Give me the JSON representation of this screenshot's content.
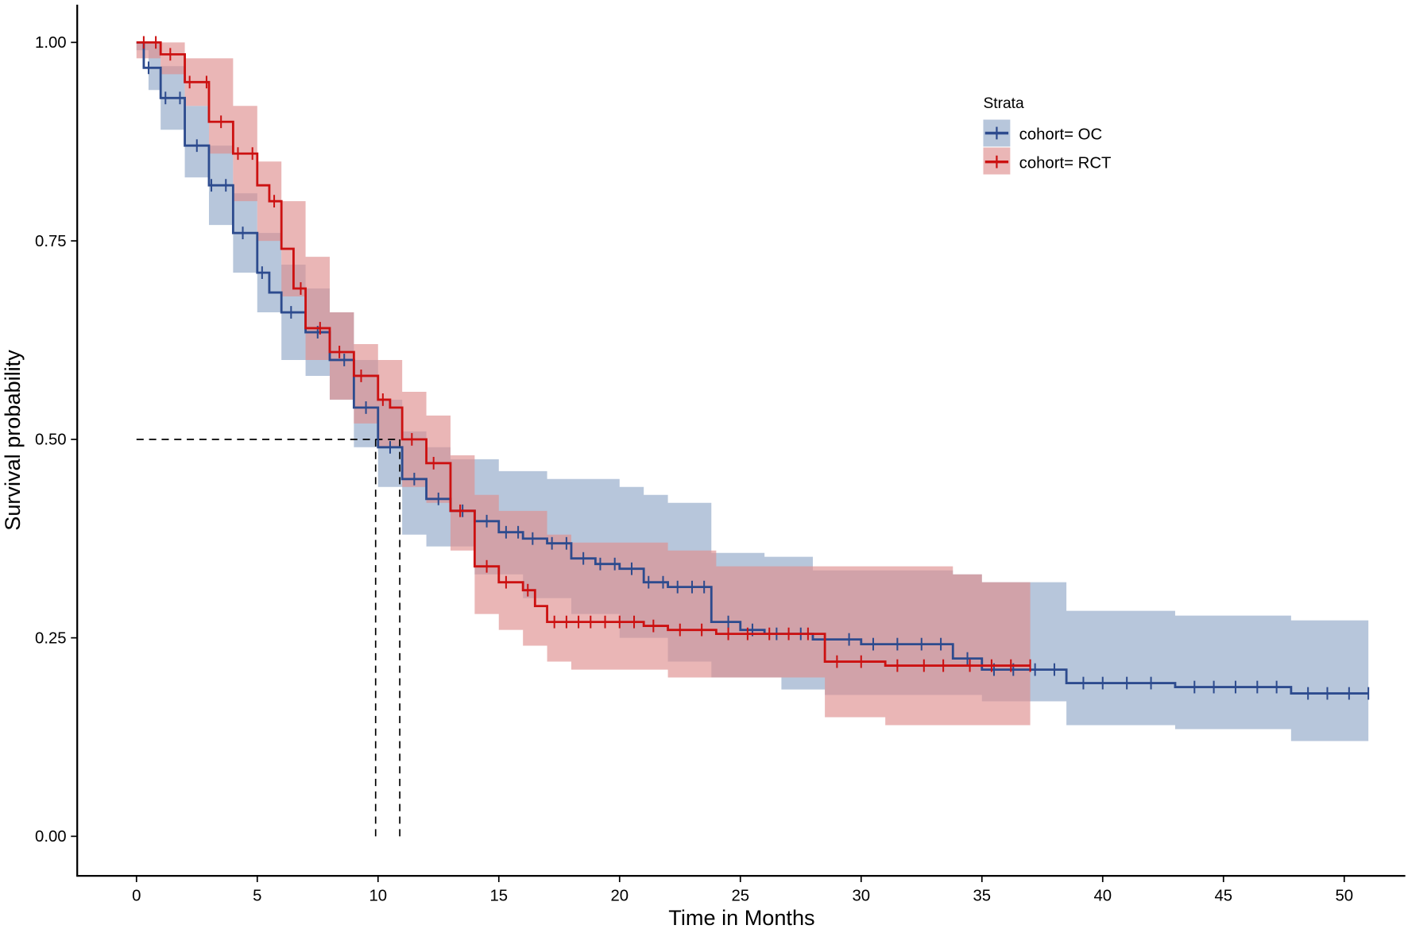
{
  "chart_data": {
    "type": "line",
    "subtype": "kaplan-meier",
    "xlabel": "Time in Months",
    "ylabel": "Survival probability",
    "xlim": [
      -2.4,
      52.5
    ],
    "ylim": [
      -0.1,
      1.05
    ],
    "xticks": [
      0,
      5,
      10,
      15,
      20,
      25,
      30,
      35,
      40,
      45,
      50
    ],
    "yticks": [
      "0.00",
      "0.25",
      "0.50",
      "0.75",
      "1.00"
    ],
    "legend": {
      "title": "Strata",
      "position": "top-right",
      "entries": [
        "cohort= OC",
        "cohort= RCT"
      ]
    },
    "median_line": {
      "y": 0.5,
      "x": [
        9.9,
        10.9
      ]
    },
    "series": [
      {
        "name": "cohort= OC",
        "color": "#2d4b8e",
        "band_color": "#9fb3cf",
        "surv": [
          [
            0,
            1
          ],
          [
            0.3,
            0.968
          ],
          [
            1,
            0.93
          ],
          [
            2,
            0.87
          ],
          [
            3,
            0.82
          ],
          [
            4,
            0.76
          ],
          [
            5,
            0.71
          ],
          [
            5.5,
            0.685
          ],
          [
            6,
            0.66
          ],
          [
            7,
            0.635
          ],
          [
            8,
            0.6
          ],
          [
            9,
            0.54
          ],
          [
            10,
            0.49
          ],
          [
            11,
            0.45
          ],
          [
            12,
            0.425
          ],
          [
            13,
            0.41
          ],
          [
            14,
            0.397
          ],
          [
            15,
            0.383
          ],
          [
            16,
            0.375
          ],
          [
            17,
            0.369
          ],
          [
            18,
            0.35
          ],
          [
            19,
            0.343
          ],
          [
            20,
            0.337
          ],
          [
            21,
            0.32
          ],
          [
            22,
            0.314
          ],
          [
            23.8,
            0.27
          ],
          [
            25,
            0.26
          ],
          [
            26,
            0.255
          ],
          [
            28,
            0.248
          ],
          [
            30,
            0.242
          ],
          [
            33.8,
            0.224
          ],
          [
            35,
            0.21
          ],
          [
            38.5,
            0.193
          ],
          [
            43,
            0.188
          ],
          [
            47.8,
            0.18
          ],
          [
            51,
            0.18
          ]
        ],
        "upper": [
          [
            0,
            1
          ],
          [
            1,
            0.97
          ],
          [
            2,
            0.92
          ],
          [
            3,
            0.87
          ],
          [
            4,
            0.81
          ],
          [
            5,
            0.76
          ],
          [
            6,
            0.72
          ],
          [
            7,
            0.69
          ],
          [
            8,
            0.66
          ],
          [
            9,
            0.6
          ],
          [
            10,
            0.55
          ],
          [
            11,
            0.51
          ],
          [
            12,
            0.49
          ],
          [
            13,
            0.475
          ],
          [
            15,
            0.46
          ],
          [
            17,
            0.45
          ],
          [
            20,
            0.44
          ],
          [
            21,
            0.43
          ],
          [
            22,
            0.42
          ],
          [
            23.8,
            0.357
          ],
          [
            26,
            0.352
          ],
          [
            28,
            0.335
          ],
          [
            33.8,
            0.33
          ],
          [
            35,
            0.32
          ],
          [
            38.5,
            0.284
          ],
          [
            43,
            0.278
          ],
          [
            47.8,
            0.272
          ],
          [
            51,
            0.272
          ]
        ],
        "lower": [
          [
            0,
            0.99
          ],
          [
            0.5,
            0.94
          ],
          [
            1,
            0.89
          ],
          [
            2,
            0.83
          ],
          [
            3,
            0.77
          ],
          [
            4,
            0.71
          ],
          [
            5,
            0.66
          ],
          [
            6,
            0.6
          ],
          [
            7,
            0.58
          ],
          [
            8,
            0.55
          ],
          [
            9,
            0.49
          ],
          [
            10,
            0.44
          ],
          [
            11,
            0.38
          ],
          [
            12,
            0.365
          ],
          [
            14,
            0.33
          ],
          [
            16,
            0.3
          ],
          [
            18,
            0.28
          ],
          [
            20,
            0.25
          ],
          [
            22,
            0.22
          ],
          [
            23.8,
            0.2
          ],
          [
            26.7,
            0.185
          ],
          [
            28.5,
            0.178
          ],
          [
            35,
            0.17
          ],
          [
            38.5,
            0.14
          ],
          [
            43,
            0.135
          ],
          [
            47.8,
            0.12
          ],
          [
            51,
            0.12
          ]
        ],
        "censor_times": [
          0.5,
          1.2,
          1.8,
          2.5,
          3.1,
          3.7,
          4.4,
          5.2,
          6.4,
          7.5,
          8.6,
          9.5,
          10.5,
          11.5,
          12.5,
          13.5,
          14.5,
          15.3,
          15.8,
          16.4,
          17.2,
          17.8,
          18.5,
          19.2,
          19.8,
          20.5,
          21.2,
          21.8,
          22.4,
          23,
          23.5,
          24.5,
          25.5,
          26.5,
          27.5,
          28.5,
          29.5,
          30.5,
          31.5,
          32.5,
          33.3,
          34.4,
          35.5,
          36.3,
          37.2,
          38,
          39.2,
          40,
          41,
          42,
          43.8,
          44.6,
          45.5,
          46.4,
          47.2,
          48.5,
          49.3,
          50.2,
          51
        ]
      },
      {
        "name": "cohort= RCT",
        "color": "#cc1111",
        "band_color": "#de8f8f",
        "surv": [
          [
            0,
            1
          ],
          [
            1,
            0.985
          ],
          [
            2,
            0.95
          ],
          [
            3,
            0.9
          ],
          [
            4,
            0.86
          ],
          [
            5,
            0.82
          ],
          [
            5.5,
            0.8
          ],
          [
            6,
            0.74
          ],
          [
            6.5,
            0.69
          ],
          [
            7,
            0.64
          ],
          [
            8,
            0.61
          ],
          [
            9,
            0.58
          ],
          [
            10,
            0.55
          ],
          [
            10.5,
            0.54
          ],
          [
            11,
            0.5
          ],
          [
            12,
            0.47
          ],
          [
            13,
            0.41
          ],
          [
            14,
            0.34
          ],
          [
            15,
            0.32
          ],
          [
            16,
            0.31
          ],
          [
            16.5,
            0.29
          ],
          [
            17,
            0.27
          ],
          [
            21,
            0.265
          ],
          [
            22,
            0.26
          ],
          [
            24,
            0.255
          ],
          [
            28.5,
            0.22
          ],
          [
            31,
            0.215
          ],
          [
            37,
            0.215
          ]
        ],
        "upper": [
          [
            0,
            1
          ],
          [
            2,
            0.98
          ],
          [
            4,
            0.92
          ],
          [
            5,
            0.85
          ],
          [
            6,
            0.8
          ],
          [
            7,
            0.73
          ],
          [
            8,
            0.66
          ],
          [
            9,
            0.62
          ],
          [
            10,
            0.6
          ],
          [
            11,
            0.56
          ],
          [
            12,
            0.53
          ],
          [
            13,
            0.48
          ],
          [
            14,
            0.43
          ],
          [
            15,
            0.41
          ],
          [
            17,
            0.38
          ],
          [
            18,
            0.37
          ],
          [
            22,
            0.36
          ],
          [
            24,
            0.34
          ],
          [
            33.8,
            0.33
          ],
          [
            35,
            0.32
          ],
          [
            37,
            0.32
          ]
        ],
        "lower": [
          [
            0,
            0.98
          ],
          [
            1,
            0.96
          ],
          [
            2,
            0.92
          ],
          [
            3,
            0.86
          ],
          [
            4,
            0.8
          ],
          [
            5,
            0.75
          ],
          [
            6,
            0.68
          ],
          [
            7,
            0.6
          ],
          [
            8,
            0.55
          ],
          [
            9,
            0.52
          ],
          [
            10,
            0.49
          ],
          [
            11,
            0.44
          ],
          [
            12,
            0.42
          ],
          [
            13,
            0.36
          ],
          [
            14,
            0.28
          ],
          [
            15,
            0.26
          ],
          [
            16,
            0.24
          ],
          [
            17,
            0.22
          ],
          [
            18,
            0.21
          ],
          [
            22,
            0.2
          ],
          [
            28.5,
            0.15
          ],
          [
            31,
            0.14
          ],
          [
            37,
            0.14
          ]
        ],
        "censor_times": [
          0.3,
          0.8,
          1.4,
          2.2,
          2.9,
          3.5,
          4.2,
          4.8,
          5.7,
          6.8,
          7.6,
          8.4,
          9.3,
          10.2,
          11.4,
          12.3,
          13.4,
          14.5,
          15.3,
          16.2,
          17.3,
          17.8,
          18.3,
          18.8,
          19.4,
          20,
          20.6,
          21.4,
          22.5,
          23.4,
          24.5,
          25.3,
          26.2,
          27,
          27.8,
          29,
          30,
          31.5,
          32.6,
          33.4,
          34.5,
          35.4,
          36.2,
          37
        ]
      }
    ]
  }
}
